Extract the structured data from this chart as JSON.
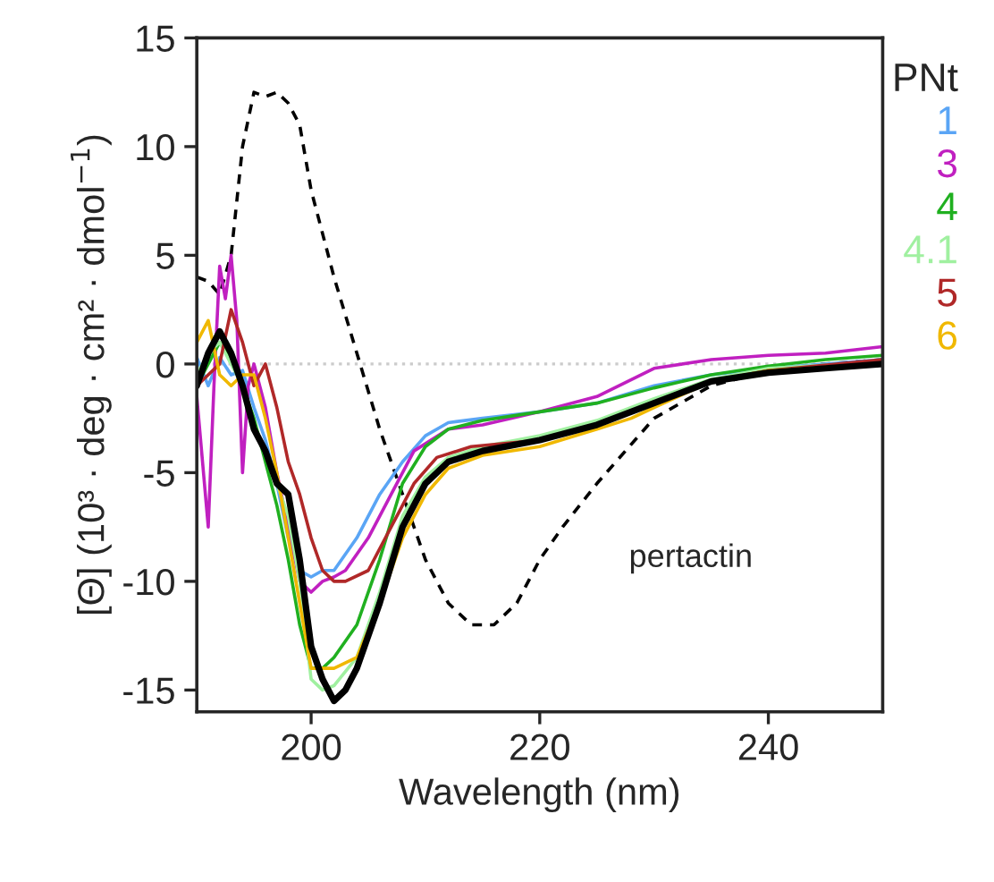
{
  "chart_data": {
    "type": "line",
    "xlabel": "Wavelength (nm)",
    "ylabel": "[Θ] (10³ · deg · cm² · dmol$^{−1}$)",
    "legend_title": "PNt",
    "xlim": [
      190,
      250
    ],
    "xticks": [
      200,
      220,
      240
    ],
    "ylim": [
      -16,
      15
    ],
    "yticks": [
      {
        "value": -15,
        "label": "-15"
      },
      {
        "value": -10,
        "label": "-10"
      },
      {
        "value": -5,
        "label": "-5"
      },
      0,
      5,
      10,
      15
    ],
    "ref_lines": [
      {
        "axis": "y",
        "value": 0,
        "color": "#cccccc",
        "line_style": "dotted"
      }
    ],
    "legend": "top right",
    "grid": false,
    "annotations": [
      "pertactin"
    ],
    "series": [
      {
        "color": "#000000",
        "line_style": "dashed",
        "x": [
          190,
          191,
          192,
          193,
          194,
          195,
          196,
          197,
          198,
          199,
          200,
          202,
          204,
          206,
          208,
          210,
          212,
          214,
          216,
          218,
          220,
          222,
          225,
          230,
          235,
          240,
          245,
          250
        ],
        "values": [
          4,
          3.8,
          3.2,
          5,
          10,
          12.5,
          12.3,
          12.5,
          12,
          11,
          8,
          4,
          0.5,
          -3,
          -6,
          -9,
          -11,
          -12,
          -12,
          -11,
          -9,
          -7.5,
          -5.5,
          -2.5,
          -1,
          -0.3,
          0,
          0.2
        ]
      },
      {
        "name": "1",
        "color": "#5aa5f5",
        "x": [
          190,
          191,
          192,
          193,
          194,
          195,
          196,
          197,
          198,
          199,
          200,
          201,
          202,
          204,
          206,
          208,
          210,
          212,
          215,
          220,
          225,
          230,
          235,
          240,
          250
        ],
        "values": [
          0.3,
          -1,
          0.3,
          -0.5,
          -0.3,
          -2,
          -3.5,
          -5.5,
          -8,
          -9.5,
          -9.8,
          -9.5,
          -9.5,
          -8,
          -6,
          -4.5,
          -3.3,
          -2.7,
          -2.5,
          -2.2,
          -1.8,
          -1,
          -0.5,
          -0.2,
          0.2
        ]
      },
      {
        "name": "3",
        "color": "#c020c0",
        "x": [
          190,
          191,
          191.5,
          192,
          192.5,
          193,
          193.5,
          194,
          194.5,
          195,
          196,
          197,
          198,
          199,
          200,
          201,
          202,
          203,
          205,
          207,
          209,
          212,
          215,
          220,
          225,
          230,
          235,
          240,
          245,
          250
        ],
        "values": [
          -1.5,
          -7.5,
          -1,
          4.5,
          3,
          5,
          2,
          -5,
          -1,
          0,
          -2,
          -5,
          -7.5,
          -10,
          -10.5,
          -10,
          -9.8,
          -9.5,
          -8,
          -6,
          -4,
          -3,
          -2.8,
          -2.2,
          -1.5,
          -0.2,
          0.2,
          0.4,
          0.5,
          0.8
        ]
      },
      {
        "name": "4",
        "color": "#20b020",
        "x": [
          190,
          191,
          192,
          193,
          194,
          195,
          196,
          197,
          198,
          199,
          200,
          201,
          202,
          204,
          206,
          208,
          210,
          212,
          215,
          220,
          225,
          230,
          235,
          240,
          245,
          250
        ],
        "values": [
          -1,
          0,
          1,
          0.3,
          -1,
          -2.5,
          -4.5,
          -6.5,
          -9,
          -12,
          -14,
          -14,
          -13.5,
          -12,
          -9,
          -5.5,
          -3.8,
          -3,
          -2.6,
          -2.2,
          -1.8,
          -1.1,
          -0.5,
          -0.1,
          0.2,
          0.4
        ]
      },
      {
        "name": "4.1",
        "color": "#a0f0a0",
        "x": [
          190,
          191,
          192,
          193,
          194,
          195,
          196,
          197,
          198,
          199,
          200,
          201,
          202,
          204,
          206,
          208,
          210,
          212,
          215,
          220,
          225,
          230,
          235,
          240,
          250
        ],
        "values": [
          -0.5,
          0.5,
          1,
          0,
          -1,
          -3,
          -4,
          -5.5,
          -7,
          -10,
          -14.5,
          -15,
          -14.8,
          -13.5,
          -10.5,
          -7,
          -5.2,
          -4.3,
          -3.8,
          -3.3,
          -2.6,
          -1.6,
          -0.7,
          -0.2,
          0.1
        ]
      },
      {
        "name": "5",
        "color": "#b02828",
        "x": [
          190,
          191,
          192,
          193,
          194,
          195,
          196,
          197,
          198,
          199,
          200,
          201,
          202,
          203,
          205,
          207,
          209,
          211,
          214,
          220,
          225,
          230,
          235,
          240,
          250
        ],
        "values": [
          -1,
          -0.5,
          0,
          2.5,
          1,
          -1,
          0,
          -2,
          -4.5,
          -6,
          -8,
          -9.5,
          -10,
          -10,
          -9.5,
          -7.5,
          -5.5,
          -4.3,
          -3.8,
          -3.5,
          -2.8,
          -1.8,
          -0.8,
          -0.3,
          0.2
        ]
      },
      {
        "name": "6",
        "color": "#f0b800",
        "x": [
          190,
          191,
          192,
          193,
          194,
          195,
          196,
          197,
          198,
          199,
          200,
          201,
          202,
          204,
          206,
          208,
          210,
          212,
          215,
          220,
          225,
          228,
          230,
          235,
          240,
          250
        ],
        "values": [
          1,
          2,
          -0.5,
          -1,
          -0.5,
          -0.5,
          -2.5,
          -5,
          -8,
          -11,
          -14,
          -14,
          -14,
          -13.5,
          -11,
          -8,
          -6,
          -4.8,
          -4.2,
          -3.8,
          -3,
          -2.5,
          -2,
          -0.8,
          -0.3,
          0
        ]
      },
      {
        "color": "#000000",
        "x": [
          190,
          191,
          192,
          193,
          194,
          195,
          196,
          197,
          198,
          199,
          200,
          201,
          202,
          203,
          204,
          206,
          208,
          210,
          212,
          215,
          220,
          225,
          230,
          235,
          240,
          245,
          250
        ],
        "values": [
          -1,
          0.5,
          1.5,
          0.5,
          -1,
          -3,
          -4,
          -5.5,
          -6,
          -9,
          -13,
          -14.5,
          -15.5,
          -15,
          -14,
          -11,
          -7.5,
          -5.5,
          -4.5,
          -4,
          -3.5,
          -2.8,
          -1.8,
          -0.8,
          -0.4,
          -0.2,
          0
        ]
      }
    ]
  }
}
